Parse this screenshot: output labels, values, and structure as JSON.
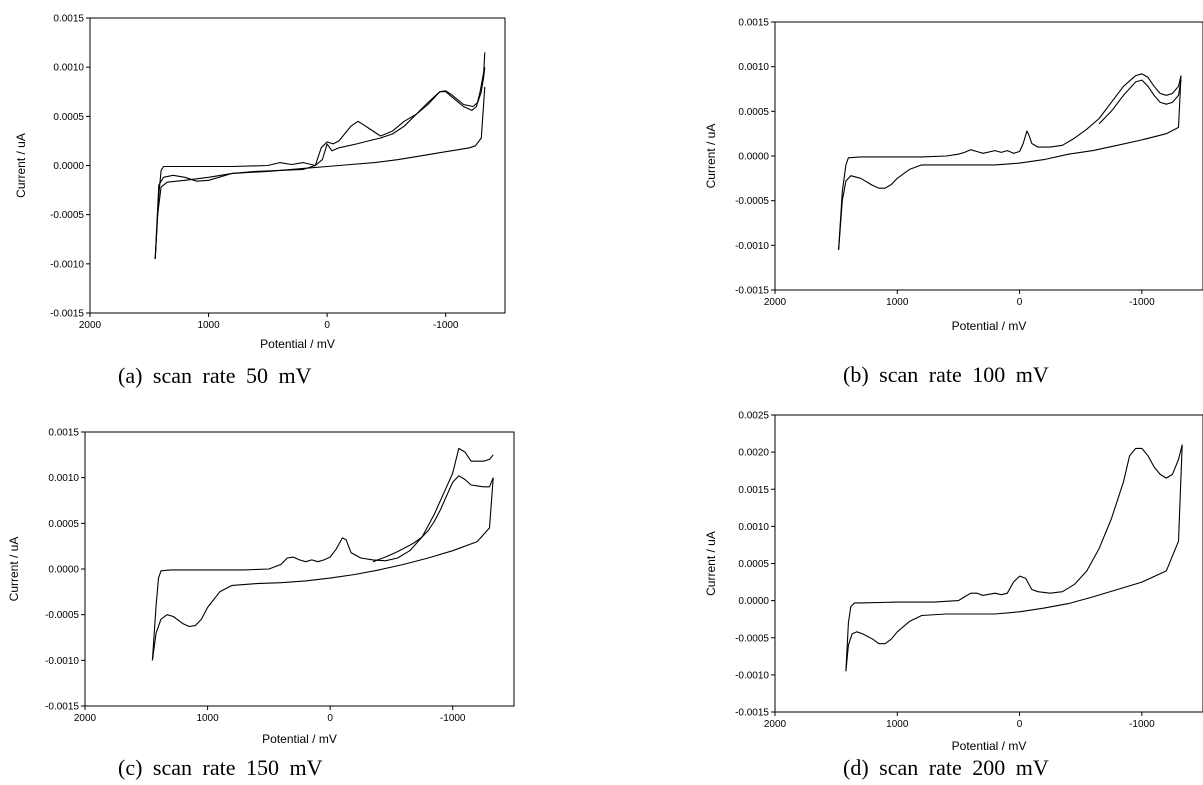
{
  "chart_data": [
    {
      "type": "line",
      "caption": "(a)  scan rate 50 mV",
      "xlabel": "Potential / mV",
      "ylabel": "Current / uA",
      "xlim": [
        2000,
        -1500
      ],
      "ylim": [
        -0.0015,
        0.0015
      ],
      "xticks": [
        2000,
        1000,
        0,
        -1000
      ],
      "xtick_labels": [
        "2000",
        "1000",
        "0",
        "-1000"
      ],
      "yticks": [
        -0.0015,
        -0.001,
        -0.0005,
        0,
        0.0005,
        0.001,
        0.0015
      ],
      "ytick_labels": [
        "-0.0015",
        "-0.0010",
        "-0.0005",
        "0.0000",
        "0.0005",
        "0.0010",
        "0.0015"
      ],
      "grid": false,
      "series": [
        {
          "x": [
            1450,
            1420,
            1380,
            1300,
            1200,
            1100,
            1000,
            800,
            600,
            400,
            200,
            100,
            50,
            0,
            -50,
            -100,
            -200,
            -260,
            -350,
            -450,
            -550,
            -650,
            -750,
            -850,
            -950,
            -1000,
            -1050,
            -1150,
            -1220,
            -1260,
            -1290,
            -1320,
            -1330
          ],
          "y": [
            -0.00095,
            -0.0002,
            -0.00012,
            -0.0001,
            -0.00012,
            -0.00016,
            -0.00015,
            -8e-05,
            -6e-05,
            -5e-05,
            -4e-05,
            0,
            0.00018,
            0.00024,
            0.00022,
            0.00025,
            0.0004,
            0.00045,
            0.00038,
            0.0003,
            0.00035,
            0.00045,
            0.00052,
            0.00064,
            0.00075,
            0.00075,
            0.0007,
            0.0006,
            0.00056,
            0.0006,
            0.00075,
            0.00095,
            0.00115
          ]
        },
        {
          "x": [
            -1330,
            -1300,
            -1250,
            -1200,
            -1100,
            -1000,
            -800,
            -600,
            -400,
            -200,
            0,
            200,
            500,
            800,
            1000,
            1200,
            1350,
            1400,
            1430,
            1450
          ],
          "y": [
            0.0008,
            0.00028,
            0.0002,
            0.00018,
            0.00016,
            0.00014,
            0.0001,
            6e-05,
            3e-05,
            1e-05,
            -1e-05,
            -3e-05,
            -6e-05,
            -8e-05,
            -0.00012,
            -0.00015,
            -0.00017,
            -0.00022,
            -0.0005,
            -0.00095
          ]
        },
        {
          "x": [
            1450,
            1420,
            1400,
            1380,
            1200,
            800,
            500,
            400,
            300,
            200,
            100,
            40,
            0,
            -40,
            -100,
            -250,
            -350,
            -450,
            -550,
            -650,
            -750,
            -850,
            -950,
            -1000,
            -1050,
            -1150,
            -1230,
            -1270,
            -1300,
            -1320,
            -1330
          ],
          "y": [
            -0.00095,
            -0.0003,
            -5e-05,
            -1e-05,
            -1e-05,
            -1e-05,
            0.0,
            3e-05,
            1e-05,
            3e-05,
            0.0,
            6e-05,
            0.00022,
            0.00015,
            0.00018,
            0.00022,
            0.00025,
            0.00028,
            0.00032,
            0.0004,
            0.00052,
            0.00062,
            0.00075,
            0.00076,
            0.00072,
            0.00062,
            0.0006,
            0.00064,
            0.00075,
            0.0009,
            0.001
          ]
        }
      ]
    },
    {
      "type": "line",
      "caption": "(b)  scan rate 100 mV",
      "xlabel": "Potential / mV",
      "ylabel": "Current / uA",
      "xlim": [
        2000,
        -1500
      ],
      "ylim": [
        -0.0015,
        0.0015
      ],
      "xticks": [
        2000,
        1000,
        0,
        -1000
      ],
      "xtick_labels": [
        "2000",
        "1000",
        "0",
        "-1000"
      ],
      "yticks": [
        -0.0015,
        -0.001,
        -0.0005,
        0,
        0.0005,
        0.001,
        0.0015
      ],
      "ytick_labels": [
        "-0.0015",
        "-0.0010",
        "-0.0005",
        "0.0000",
        "0.0005",
        "0.0010",
        "0.0015"
      ],
      "grid": false,
      "series": [
        {
          "x": [
            1480,
            1450,
            1420,
            1380,
            1300,
            1200,
            1150,
            1100,
            1050,
            1000,
            900,
            800,
            600,
            400,
            200,
            0,
            -200,
            -400,
            -600,
            -800,
            -1000,
            -1200,
            -1300,
            -1320
          ],
          "y": [
            -0.00105,
            -0.0005,
            -0.00028,
            -0.00022,
            -0.00025,
            -0.00033,
            -0.00036,
            -0.00036,
            -0.00032,
            -0.00025,
            -0.00015,
            -0.0001,
            -0.0001,
            -0.0001,
            -0.0001,
            -8e-05,
            -4e-05,
            2e-05,
            6e-05,
            0.00012,
            0.00018,
            0.00025,
            0.00032,
            0.0009
          ]
        },
        {
          "x": [
            1480,
            1450,
            1420,
            1400,
            1300,
            1000,
            800,
            600,
            500,
            450,
            400,
            350,
            300,
            200,
            150,
            100,
            50,
            0,
            -30,
            -60,
            -80,
            -100,
            -150,
            -250,
            -350,
            -450,
            -550,
            -650,
            -750,
            -850,
            -950,
            -1000,
            -1050,
            -1100,
            -1150,
            -1200,
            -1250,
            -1300,
            -1320
          ],
          "y": [
            -0.00105,
            -0.0004,
            -0.0001,
            -2e-05,
            -1e-05,
            -1e-05,
            -1e-05,
            0.0,
            2e-05,
            4e-05,
            7e-05,
            5e-05,
            3e-05,
            6e-05,
            4e-05,
            6e-05,
            3e-05,
            5e-05,
            0.00014,
            0.00028,
            0.00022,
            0.00014,
            0.0001,
            0.0001,
            0.00012,
            0.0002,
            0.0003,
            0.00042,
            0.0006,
            0.00078,
            0.0009,
            0.00092,
            0.00088,
            0.00078,
            0.0007,
            0.00068,
            0.0007,
            0.00078,
            0.0009
          ]
        },
        {
          "x": [
            -1320,
            -1300,
            -1250,
            -1200,
            -1150,
            -1100,
            -1050,
            -1000,
            -950,
            -850,
            -750,
            -650
          ],
          "y": [
            0.00085,
            0.00068,
            0.0006,
            0.00058,
            0.0006,
            0.00068,
            0.00078,
            0.00085,
            0.00083,
            0.00068,
            0.0005,
            0.00036
          ]
        }
      ]
    },
    {
      "type": "line",
      "caption": "(c)  scan rate 150 mV",
      "xlabel": "Potential / mV",
      "ylabel": "Current / uA",
      "xlim": [
        2000,
        -1500
      ],
      "ylim": [
        -0.0015,
        0.0015
      ],
      "xticks": [
        2000,
        1000,
        0,
        -1000
      ],
      "xtick_labels": [
        "2000",
        "1000",
        "0",
        "-1000"
      ],
      "yticks": [
        -0.0015,
        -0.001,
        -0.0005,
        0,
        0.0005,
        0.001,
        0.0015
      ],
      "ytick_labels": [
        "-0.0015",
        "-0.0010",
        "-0.0005",
        "0.0000",
        "0.0005",
        "0.0010",
        "0.0015"
      ],
      "grid": false,
      "series": [
        {
          "x": [
            1450,
            1420,
            1380,
            1330,
            1280,
            1200,
            1150,
            1100,
            1050,
            1000,
            900,
            800,
            600,
            400,
            200,
            0,
            -200,
            -400,
            -600,
            -800,
            -1000,
            -1200,
            -1300,
            -1330
          ],
          "y": [
            -0.001,
            -0.0007,
            -0.00055,
            -0.0005,
            -0.00052,
            -0.0006,
            -0.00063,
            -0.00062,
            -0.00055,
            -0.00042,
            -0.00025,
            -0.00018,
            -0.00016,
            -0.00015,
            -0.00013,
            -0.0001,
            -6e-05,
            -1e-05,
            5e-05,
            0.00012,
            0.0002,
            0.0003,
            0.00045,
            0.001
          ]
        },
        {
          "x": [
            1450,
            1420,
            1400,
            1380,
            1300,
            1000,
            700,
            500,
            400,
            350,
            300,
            250,
            200,
            150,
            100,
            50,
            0,
            -50,
            -100,
            -130,
            -170,
            -250,
            -350,
            -450,
            -550,
            -650,
            -750,
            -850,
            -950,
            -1000,
            -1050,
            -1100,
            -1150,
            -1200,
            -1250,
            -1300,
            -1330
          ],
          "y": [
            -0.001,
            -0.0004,
            -0.0001,
            -2e-05,
            -1e-05,
            -1e-05,
            -1e-05,
            0.0,
            5e-05,
            0.00012,
            0.00013,
            0.0001,
            8e-05,
            0.0001,
            8e-05,
            0.0001,
            0.00013,
            0.00022,
            0.00034,
            0.00032,
            0.00018,
            0.00012,
            0.0001,
            9e-05,
            0.00012,
            0.0002,
            0.00035,
            0.0006,
            0.0009,
            0.00105,
            0.00132,
            0.00128,
            0.00118,
            0.00118,
            0.00118,
            0.0012,
            0.00125
          ]
        },
        {
          "x": [
            -1330,
            -1300,
            -1250,
            -1200,
            -1150,
            -1100,
            -1050,
            -1000,
            -950,
            -900,
            -850,
            -800,
            -750,
            -700,
            -650,
            -550,
            -450,
            -350
          ],
          "y": [
            0.001,
            0.0009,
            0.0009,
            0.00091,
            0.00092,
            0.00098,
            0.00102,
            0.00095,
            0.0008,
            0.00065,
            0.00052,
            0.00042,
            0.00035,
            0.0003,
            0.00026,
            0.00019,
            0.00013,
            8e-05
          ]
        }
      ]
    },
    {
      "type": "line",
      "caption": "(d)  scan rate 200 mV",
      "xlabel": "Potential / mV",
      "ylabel": "Current / uA",
      "xlim": [
        2000,
        -1500
      ],
      "ylim": [
        -0.0015,
        0.0025
      ],
      "xticks": [
        2000,
        1000,
        0,
        -1000
      ],
      "xtick_labels": [
        "2000",
        "1000",
        "0",
        "-1000"
      ],
      "yticks": [
        -0.0015,
        -0.001,
        -0.0005,
        0,
        0.0005,
        0.001,
        0.0015,
        0.002,
        0.0025
      ],
      "ytick_labels": [
        "-0.0015",
        "-0.0010",
        "-0.0005",
        "0.0000",
        "0.0005",
        "0.0010",
        "0.0015",
        "0.0020",
        "0.0025"
      ],
      "grid": false,
      "series": [
        {
          "x": [
            1420,
            1400,
            1370,
            1330,
            1280,
            1200,
            1150,
            1100,
            1050,
            1000,
            900,
            800,
            600,
            400,
            200,
            0,
            -200,
            -400,
            -600,
            -800,
            -1000,
            -1200,
            -1300,
            -1330
          ],
          "y": [
            -0.00095,
            -0.0006,
            -0.00045,
            -0.00042,
            -0.00045,
            -0.00052,
            -0.00058,
            -0.00058,
            -0.00052,
            -0.00042,
            -0.00028,
            -0.0002,
            -0.00018,
            -0.00018,
            -0.00018,
            -0.00015,
            -0.0001,
            -4e-05,
            5e-05,
            0.00015,
            0.00025,
            0.0004,
            0.0008,
            0.0021
          ]
        },
        {
          "x": [
            1420,
            1400,
            1380,
            1350,
            1300,
            1000,
            700,
            500,
            450,
            400,
            350,
            300,
            200,
            150,
            100,
            50,
            0,
            -50,
            -100,
            -150,
            -250,
            -350,
            -450,
            -550,
            -650,
            -750,
            -850,
            -900,
            -950,
            -1000,
            -1050,
            -1100,
            -1150,
            -1200,
            -1250,
            -1300,
            -1330
          ],
          "y": [
            -0.00095,
            -0.0003,
            -8e-05,
            -3e-05,
            -3e-05,
            -2e-05,
            -2e-05,
            0.0,
            5e-05,
            0.0001,
            0.0001,
            7e-05,
            0.0001,
            8e-05,
            0.0001,
            0.00025,
            0.00033,
            0.0003,
            0.00015,
            0.00012,
            0.0001,
            0.00012,
            0.00022,
            0.0004,
            0.0007,
            0.0011,
            0.0016,
            0.00195,
            0.00205,
            0.00205,
            0.00195,
            0.0018,
            0.0017,
            0.00165,
            0.0017,
            0.0019,
            0.0021
          ]
        }
      ]
    }
  ]
}
